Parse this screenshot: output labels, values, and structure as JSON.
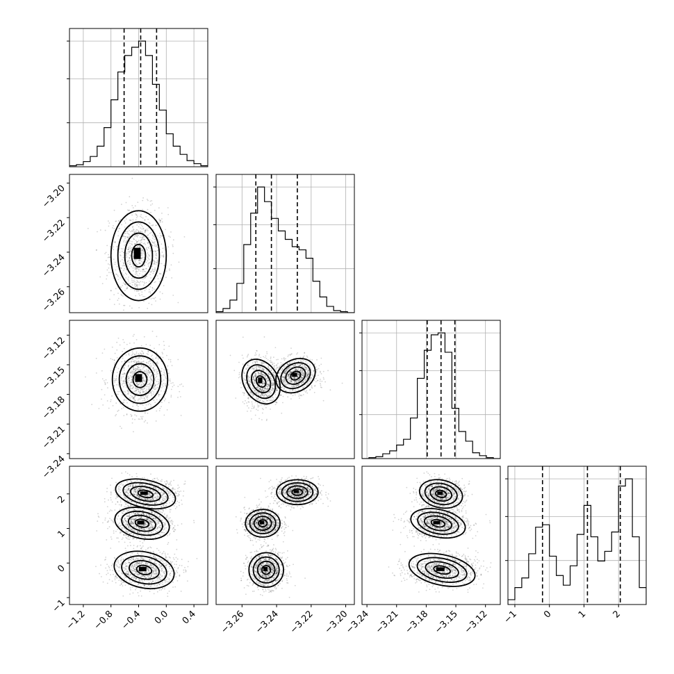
{
  "chart_data": {
    "type": "corner",
    "parameters": [
      {
        "ticks": [
          -1.2,
          -0.8,
          -0.4,
          0.0,
          0.4
        ],
        "tick_labels": [
          "−1.2",
          "−0.8",
          "−0.4",
          "0.0",
          "0.4"
        ],
        "range": [
          -1.4,
          0.6
        ],
        "quantiles": [
          -0.61,
          -0.37,
          -0.14
        ],
        "histogram": {
          "edges": [
            -1.4,
            -1.3,
            -1.2,
            -1.1,
            -1.0,
            -0.9,
            -0.8,
            -0.7,
            -0.6,
            -0.5,
            -0.4,
            -0.3,
            -0.2,
            -0.1,
            0.0,
            0.1,
            0.2,
            0.3,
            0.4,
            0.5,
            0.6
          ],
          "counts": [
            1,
            2,
            5,
            10,
            20,
            38,
            65,
            92,
            108,
            116,
            122,
            108,
            80,
            55,
            32,
            20,
            12,
            6,
            3,
            1
          ]
        }
      },
      {
        "ticks": [
          -3.26,
          -3.24,
          -3.22,
          -3.2
        ],
        "tick_labels": [
          "−3.26",
          "−3.24",
          "−3.22",
          "−3.20"
        ],
        "range": [
          -3.275,
          -3.195
        ],
        "quantiles": [
          -3.252,
          -3.243,
          -3.228
        ],
        "histogram": {
          "edges": [
            -3.275,
            -3.271,
            -3.267,
            -3.263,
            -3.259,
            -3.255,
            -3.251,
            -3.247,
            -3.243,
            -3.239,
            -3.235,
            -3.231,
            -3.227,
            -3.223,
            -3.219,
            -3.215,
            -3.211,
            -3.207,
            -3.203,
            -3.199,
            -3.195
          ],
          "counts": [
            1,
            4,
            12,
            28,
            65,
            95,
            120,
            106,
            90,
            78,
            70,
            63,
            60,
            52,
            30,
            15,
            6,
            2,
            1,
            0
          ]
        }
      },
      {
        "ticks": [
          -3.24,
          -3.21,
          -3.18,
          -3.15,
          -3.12
        ],
        "tick_labels": [
          "−3.24",
          "−3.21",
          "−3.18",
          "−3.15",
          "−3.12"
        ],
        "range": [
          -3.245,
          -3.105
        ],
        "quantiles": [
          -3.179,
          -3.165,
          -3.151
        ],
        "histogram": {
          "edges": [
            -3.245,
            -3.238,
            -3.231,
            -3.224,
            -3.217,
            -3.21,
            -3.203,
            -3.196,
            -3.189,
            -3.182,
            -3.175,
            -3.168,
            -3.161,
            -3.154,
            -3.147,
            -3.14,
            -3.133,
            -3.126,
            -3.119,
            -3.112,
            -3.105
          ],
          "counts": [
            0,
            1,
            2,
            5,
            8,
            14,
            20,
            42,
            83,
            112,
            128,
            130,
            110,
            52,
            28,
            18,
            6,
            3,
            1,
            0
          ]
        }
      },
      {
        "ticks": [
          -1,
          0,
          1,
          2
        ],
        "tick_labels": [
          "−1",
          "0",
          "1",
          "2"
        ],
        "range": [
          -1.2,
          2.8
        ],
        "quantiles": [
          -0.2,
          1.1,
          2.05
        ],
        "histogram": {
          "edges": [
            -1.2,
            -1.0,
            -0.8,
            -0.6,
            -0.4,
            -0.2,
            0.0,
            0.2,
            0.4,
            0.6,
            0.8,
            1.0,
            1.2,
            1.4,
            1.6,
            1.8,
            2.0,
            2.2,
            2.4,
            2.6,
            2.8
          ],
          "counts": [
            4,
            14,
            22,
            42,
            64,
            66,
            40,
            24,
            16,
            32,
            58,
            82,
            56,
            36,
            44,
            60,
            98,
            104,
            56,
            14,
            0
          ]
        }
      }
    ],
    "y_tick_sets": {
      "row1": {
        "ticks": [
          -3.26,
          -3.24,
          -3.22,
          -3.2
        ],
        "tick_labels": [
          "−3.26",
          "−3.24",
          "−3.22",
          "−3.20"
        ]
      },
      "row2": {
        "ticks": [
          -3.24,
          -3.21,
          -3.18,
          -3.15,
          -3.12
        ],
        "tick_labels": [
          "−3.24",
          "−3.21",
          "−3.18",
          "−3.15",
          "−3.12"
        ]
      },
      "row3": {
        "ticks": [
          -1,
          0,
          1,
          2
        ],
        "tick_labels": [
          "−1",
          "0",
          "1",
          "2"
        ]
      }
    },
    "blobs": {
      "1-0": [
        {
          "cx": -0.4,
          "cy": -3.242,
          "sx": 0.2,
          "sy": 0.013
        }
      ],
      "2-0": [
        {
          "cx": -0.38,
          "cy": -3.165,
          "sx": 0.2,
          "sy": 0.016
        }
      ],
      "2-1": [
        {
          "cx": -3.249,
          "cy": -3.167,
          "sx": 0.005,
          "sy": 0.012
        },
        {
          "cx": -3.229,
          "cy": -3.161,
          "sx": 0.006,
          "sy": 0.008
        }
      ],
      "3-0": [
        {
          "cx": -0.3,
          "cy": 2.0,
          "sx": 0.22,
          "sy": 0.2
        },
        {
          "cx": -0.35,
          "cy": 1.15,
          "sx": 0.2,
          "sy": 0.22
        },
        {
          "cx": -0.32,
          "cy": -0.2,
          "sx": 0.22,
          "sy": 0.26
        }
      ],
      "3-1": [
        {
          "cx": -3.228,
          "cy": 2.05,
          "sx": 0.006,
          "sy": 0.18
        },
        {
          "cx": -3.248,
          "cy": 1.15,
          "sx": 0.005,
          "sy": 0.2
        },
        {
          "cx": -3.246,
          "cy": -0.2,
          "sx": 0.005,
          "sy": 0.25
        }
      ],
      "3-2": [
        {
          "cx": -3.165,
          "cy": 2.0,
          "sx": 0.011,
          "sy": 0.2
        },
        {
          "cx": -3.168,
          "cy": 1.15,
          "sx": 0.014,
          "sy": 0.2
        },
        {
          "cx": -3.164,
          "cy": -0.2,
          "sx": 0.017,
          "sy": 0.22
        }
      ]
    },
    "grid": true,
    "title": "",
    "xlabel": "",
    "ylabel": ""
  }
}
